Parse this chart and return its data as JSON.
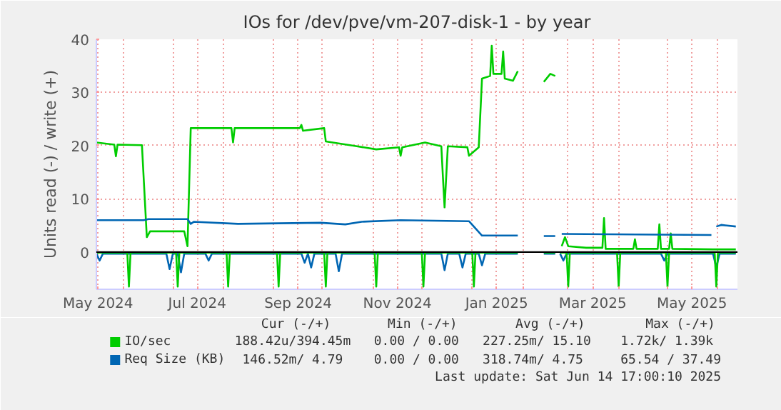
{
  "chart_data": {
    "type": "line",
    "title": "IOs for /dev/pve/vm-207-disk-1 - by year",
    "ylabel": "Units read (-) / write (+)",
    "xlim": [
      "2024-05-15",
      "2025-06-13"
    ],
    "ylim": [
      -7,
      40
    ],
    "yticks": [
      0,
      10,
      20,
      30,
      40
    ],
    "xticks": [
      {
        "value": "2024-05-16",
        "label": "May 2024"
      },
      {
        "value": "2024-07-16",
        "label": "Jul 2024"
      },
      {
        "value": "2024-09-16",
        "label": "Sep 2024"
      },
      {
        "value": "2024-11-16",
        "label": "Nov 2024"
      },
      {
        "value": "2025-01-16",
        "label": "Jan 2025"
      },
      {
        "value": "2025-03-16",
        "label": "Mar 2025"
      },
      {
        "value": "2025-05-16",
        "label": "May 2025"
      },
      {
        "value": "2024-06-01",
        "label": null
      },
      {
        "value": "2024-07-01",
        "label": null
      },
      {
        "value": "2024-08-01",
        "label": null
      },
      {
        "value": "2024-09-01",
        "label": null
      },
      {
        "value": "2024-10-01",
        "label": null
      },
      {
        "value": "2024-11-01",
        "label": null
      },
      {
        "value": "2024-12-01",
        "label": null
      },
      {
        "value": "2025-01-01",
        "label": null
      },
      {
        "value": "2025-02-01",
        "label": null
      },
      {
        "value": "2025-03-01",
        "label": null
      },
      {
        "value": "2025-04-01",
        "label": null
      },
      {
        "value": "2025-05-01",
        "label": null
      },
      {
        "value": "2025-06-01",
        "label": null
      }
    ],
    "grid": true,
    "legend": "bottom",
    "marker": "none",
    "line_style": "solid",
    "ref_lines": [
      {
        "axis": "y",
        "value": 0,
        "color": "#000000"
      }
    ],
    "annotations": [
      "Cur (-/+)",
      "Min (-/+)",
      "Avg (-/+)",
      "Max (-/+)",
      "188.42u/394.45m",
      "0.00 /  0.00",
      "227.25m/ 15.10",
      "1.72k/  1.39k",
      "146.52m/  4.79",
      "0.00 /  0.00",
      "318.74m/  4.75",
      "65.54 / 37.49",
      "Last update: Sat Jun 14 17:00:10 2025"
    ],
    "series": [
      {
        "name": "IO/sec",
        "color": "#00cc00",
        "x": [
          "2024-05-15",
          "2024-05-26",
          "2024-05-27",
          "2024-05-28",
          "2024-06-12",
          "2024-06-15",
          "2024-06-17",
          "2024-07-08",
          "2024-07-10",
          "2024-07-12",
          "2024-08-06",
          "2024-08-07",
          "2024-08-08",
          "2024-09-17",
          "2024-09-18",
          "2024-09-19",
          "2024-10-02",
          "2024-10-03",
          "2024-10-20",
          "2024-11-03",
          "2024-11-17",
          "2024-11-18",
          "2024-11-19",
          "2024-12-03",
          "2024-12-13",
          "2024-12-14",
          "2024-12-15",
          "2024-12-17",
          "2024-12-29",
          "2024-12-30",
          "2025-01-05",
          "2025-01-07",
          "2025-01-12",
          "2025-01-13",
          "2025-01-14",
          "2025-01-19",
          "2025-01-20",
          "2025-01-21",
          "2025-01-26",
          "2025-01-29",
          "2025-02-06",
          "2025-02-14",
          "2025-02-18",
          "2025-02-21",
          "2025-02-23",
          "2025-02-25",
          "2025-02-27",
          "2025-03-01",
          "2025-03-12",
          "2025-03-22",
          "2025-03-23",
          "2025-03-24",
          "2025-04-10",
          "2025-04-11",
          "2025-04-12",
          "2025-04-25",
          "2025-04-26",
          "2025-04-27",
          "2025-05-02",
          "2025-05-03",
          "2025-05-04",
          "2025-05-29",
          "2025-06-12"
        ],
        "values": [
          20.6,
          20.2,
          18.0,
          20.2,
          20.1,
          2.8,
          3.9,
          3.9,
          1.1,
          23.3,
          23.3,
          20.6,
          23.3,
          23.3,
          23.9,
          22.8,
          23.3,
          20.8,
          20.0,
          19.3,
          19.7,
          18.1,
          19.7,
          20.6,
          19.9,
          14.0,
          8.4,
          19.9,
          19.7,
          18.1,
          19.7,
          32.6,
          33.1,
          38.8,
          33.5,
          33.5,
          37.7,
          32.6,
          32.2,
          34.0,
          null,
          32.0,
          33.5,
          33.1,
          null,
          1.1,
          2.8,
          1.1,
          0.8,
          0.8,
          6.4,
          0.6,
          0.6,
          2.4,
          0.6,
          0.6,
          5.2,
          0.6,
          0.6,
          3.5,
          0.6,
          0.5,
          0.5
        ]
      },
      {
        "name": "Req Size (KB)",
        "color": "#0066b3",
        "x": [
          "2024-05-15",
          "2024-06-13",
          "2024-06-16",
          "2024-07-10",
          "2024-07-12",
          "2024-07-14",
          "2024-08-10",
          "2024-09-30",
          "2024-10-15",
          "2024-10-25",
          "2024-11-18",
          "2024-12-30",
          "2025-01-07",
          "2025-01-29",
          "2025-02-06",
          "2025-02-14",
          "2025-02-21",
          "2025-02-23",
          "2025-02-25",
          "2025-05-28",
          "2025-05-30",
          "2025-05-31",
          "2025-06-03",
          "2025-06-12"
        ],
        "values": [
          6.0,
          6.0,
          6.2,
          6.2,
          5.3,
          5.7,
          5.3,
          5.5,
          5.2,
          5.7,
          6.0,
          5.8,
          3.1,
          3.1,
          null,
          3.0,
          3.0,
          null,
          3.4,
          3.2,
          null,
          4.8,
          5.1,
          4.8
        ]
      },
      {
        "color": "#0066b3",
        "x": [
          "2024-05-15",
          "2024-05-17",
          "2024-05-19",
          "2024-06-27",
          "2024-06-29",
          "2024-07-01",
          "2024-07-04",
          "2024-07-06",
          "2024-07-08",
          "2024-07-21",
          "2024-07-23",
          "2024-07-25",
          "2024-09-18",
          "2024-09-20",
          "2024-09-22",
          "2024-09-24",
          "2024-09-26",
          "2024-10-09",
          "2024-10-11",
          "2024-10-13",
          "2024-12-13",
          "2024-12-15",
          "2024-12-17",
          "2024-12-24",
          "2024-12-26",
          "2024-12-28",
          "2025-01-05",
          "2025-01-07",
          "2025-01-09",
          "2025-01-29",
          "2025-02-06",
          "2025-02-14",
          "2025-02-21",
          "2025-02-23",
          "2025-02-24",
          "2025-02-26",
          "2025-02-28",
          "2025-04-27",
          "2025-04-29",
          "2025-05-01",
          "2025-05-29",
          "2025-05-31",
          "2025-06-02",
          "2025-06-12"
        ],
        "values": [
          -0.3,
          -1.6,
          -0.3,
          -0.3,
          -3.2,
          -0.3,
          -0.3,
          -3.8,
          -0.3,
          -0.3,
          -1.6,
          -0.3,
          -0.3,
          -2.0,
          -0.3,
          -2.9,
          -0.3,
          -0.3,
          -3.6,
          -0.3,
          -0.3,
          -3.4,
          -0.3,
          -0.3,
          -2.9,
          -0.3,
          -0.3,
          -2.5,
          -0.3,
          -0.3,
          null,
          -0.3,
          -0.3,
          null,
          -0.3,
          -1.6,
          -0.3,
          -0.3,
          -1.6,
          -0.3,
          -0.3,
          -2.9,
          -0.3,
          -0.3
        ]
      },
      {
        "color": "#00cc00",
        "x": [
          "2024-05-15",
          "2024-06-03",
          "2024-06-04",
          "2024-06-05",
          "2024-07-03",
          "2024-07-04",
          "2024-07-05",
          "2024-08-03",
          "2024-08-04",
          "2024-08-05",
          "2024-09-03",
          "2024-09-04",
          "2024-09-05",
          "2024-10-02",
          "2024-10-03",
          "2024-10-04",
          "2024-11-02",
          "2024-11-03",
          "2024-11-04",
          "2024-12-01",
          "2024-12-02",
          "2024-12-03",
          "2025-01-01",
          "2025-01-02",
          "2025-01-03",
          "2025-01-29",
          "2025-02-06",
          "2025-02-14",
          "2025-02-21",
          "2025-02-23",
          "2025-02-24",
          "2025-02-28",
          "2025-03-01",
          "2025-03-02",
          "2025-03-31",
          "2025-04-01",
          "2025-04-02",
          "2025-04-30",
          "2025-05-01",
          "2025-05-02",
          "2025-05-30",
          "2025-05-31",
          "2025-06-01",
          "2025-06-12"
        ],
        "values": [
          -0.1,
          -0.1,
          -6.5,
          -0.1,
          -0.1,
          -6.5,
          -0.1,
          -0.1,
          -6.5,
          -0.1,
          -0.1,
          -6.5,
          -0.1,
          -0.1,
          -6.5,
          -0.1,
          -0.1,
          -6.5,
          -0.1,
          -0.1,
          -6.5,
          -0.1,
          -0.1,
          -6.5,
          -0.1,
          -0.1,
          null,
          -0.1,
          -0.1,
          null,
          -0.1,
          -0.1,
          -6.5,
          -0.1,
          -0.1,
          -6.5,
          -0.1,
          -0.1,
          -6.5,
          -0.1,
          -0.1,
          -6.5,
          -0.1,
          -0.1
        ]
      }
    ]
  }
}
